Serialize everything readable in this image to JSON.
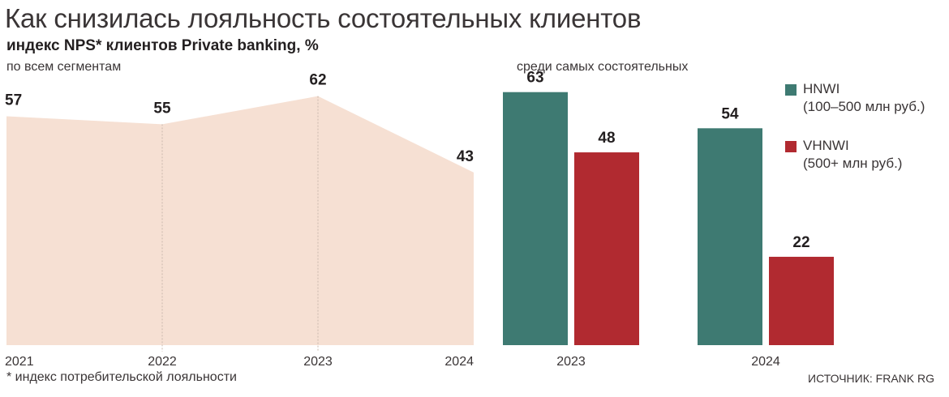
{
  "title": "Как снизилась лояльность состоятельных клиентов",
  "subtitle": "индекс NPS* клиентов Private banking, %",
  "footnote": "* индекс потребительской лояльности",
  "source": "ИСТОЧНИК: FRANK RG",
  "colors": {
    "area": "#f6e0d3",
    "hnwi": "#3e7a72",
    "vhnwi": "#b12a30",
    "gridline": "#c9b8ad"
  },
  "chart_data": [
    {
      "type": "area",
      "panel_label": "по всем сегментам",
      "x": [
        "2021",
        "2022",
        "2023",
        "2024"
      ],
      "values": [
        57,
        55,
        62,
        43
      ],
      "ylim": [
        0,
        70
      ]
    },
    {
      "type": "bar",
      "panel_label": "среди самых состоятельных",
      "categories": [
        "2023",
        "2024"
      ],
      "series": [
        {
          "name": "HNWI",
          "note": "(100–500 млн руб.)",
          "values": [
            63,
            54
          ]
        },
        {
          "name": "VHNWI",
          "note": "(500+ млн руб.)",
          "values": [
            48,
            22
          ]
        }
      ],
      "ylim": [
        0,
        70
      ]
    }
  ]
}
